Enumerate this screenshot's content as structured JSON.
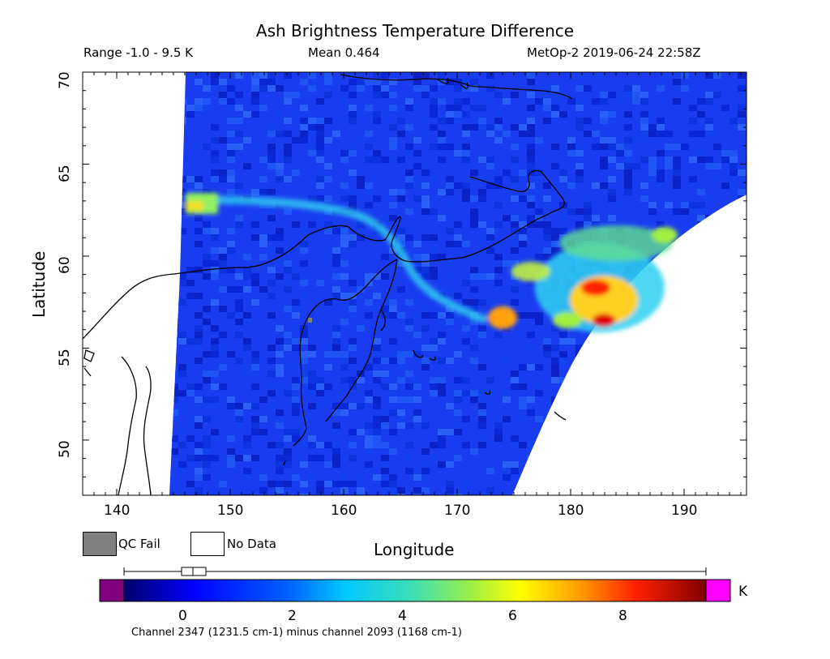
{
  "title": "Ash Brightness Temperature Difference",
  "info": {
    "range": "Range -1.0 - 9.5 K",
    "mean": "Mean 0.464",
    "satellite": "MetOp-2 2019-06-24 22:58Z"
  },
  "axes": {
    "xlabel": "Longitude",
    "ylabel": "Latitude",
    "xticks": [
      "140",
      "150",
      "160",
      "170",
      "180",
      "190"
    ],
    "yticks": [
      "70",
      "65",
      "60",
      "55",
      "50"
    ],
    "xlim": [
      137,
      195.5
    ],
    "ylim": [
      47,
      70
    ]
  },
  "legend": {
    "qc_fail": "QC Fail",
    "no_data": "No Data",
    "qc_fail_color": "#808080",
    "no_data_color": "#ffffff"
  },
  "colorbar": {
    "ticks": [
      "0",
      "2",
      "4",
      "6",
      "8"
    ],
    "unit": "K",
    "range": [
      -1.0,
      9.5
    ],
    "under_color": "#800080",
    "over_color": "#ff00ff"
  },
  "footnote": "Channel 2347 (1231.5 cm-1) minus channel 2093 (1168 cm-1)"
}
